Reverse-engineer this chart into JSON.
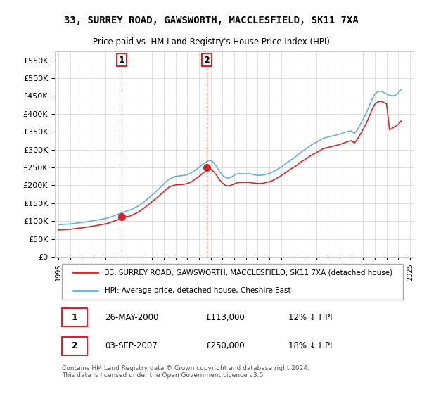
{
  "title": "33, SURREY ROAD, GAWSWORTH, MACCLESFIELD, SK11 7XA",
  "subtitle": "Price paid vs. HM Land Registry's House Price Index (HPI)",
  "legend_line1": "33, SURREY ROAD, GAWSWORTH, MACCLESFIELD, SK11 7XA (detached house)",
  "legend_line2": "HPI: Average price, detached house, Cheshire East",
  "marker1_label": "1",
  "marker1_date": "26-MAY-2000",
  "marker1_price": "£113,000",
  "marker1_hpi": "12% ↓ HPI",
  "marker2_label": "2",
  "marker2_date": "03-SEP-2007",
  "marker2_price": "£250,000",
  "marker2_hpi": "18% ↓ HPI",
  "footnote": "Contains HM Land Registry data © Crown copyright and database right 2024.\nThis data is licensed under the Open Government Licence v3.0.",
  "hpi_color": "#6baed6",
  "price_color": "#d62728",
  "marker_color": "#d62728",
  "grid_color": "#e0e0e0",
  "background_color": "#ffffff",
  "ylim": [
    0,
    575000
  ],
  "yticks": [
    0,
    50000,
    100000,
    150000,
    200000,
    250000,
    300000,
    350000,
    400000,
    450000,
    500000,
    550000
  ],
  "hpi_data": {
    "years": [
      1995.0,
      1995.25,
      1995.5,
      1995.75,
      1996.0,
      1996.25,
      1996.5,
      1996.75,
      1997.0,
      1997.25,
      1997.5,
      1997.75,
      1998.0,
      1998.25,
      1998.5,
      1998.75,
      1999.0,
      1999.25,
      1999.5,
      1999.75,
      2000.0,
      2000.25,
      2000.5,
      2000.75,
      2001.0,
      2001.25,
      2001.5,
      2001.75,
      2002.0,
      2002.25,
      2002.5,
      2002.75,
      2003.0,
      2003.25,
      2003.5,
      2003.75,
      2004.0,
      2004.25,
      2004.5,
      2004.75,
      2005.0,
      2005.25,
      2005.5,
      2005.75,
      2006.0,
      2006.25,
      2006.5,
      2006.75,
      2007.0,
      2007.25,
      2007.5,
      2007.75,
      2008.0,
      2008.25,
      2008.5,
      2008.75,
      2009.0,
      2009.25,
      2009.5,
      2009.75,
      2010.0,
      2010.25,
      2010.5,
      2010.75,
      2011.0,
      2011.25,
      2011.5,
      2011.75,
      2012.0,
      2012.25,
      2012.5,
      2012.75,
      2013.0,
      2013.25,
      2013.5,
      2013.75,
      2014.0,
      2014.25,
      2014.5,
      2014.75,
      2015.0,
      2015.25,
      2015.5,
      2015.75,
      2016.0,
      2016.25,
      2016.5,
      2016.75,
      2017.0,
      2017.25,
      2017.5,
      2017.75,
      2018.0,
      2018.25,
      2018.5,
      2018.75,
      2019.0,
      2019.25,
      2019.5,
      2019.75,
      2020.0,
      2020.25,
      2020.5,
      2020.75,
      2021.0,
      2021.25,
      2021.5,
      2021.75,
      2022.0,
      2022.25,
      2022.5,
      2022.75,
      2023.0,
      2023.25,
      2023.5,
      2023.75,
      2024.0,
      2024.25
    ],
    "values": [
      90000,
      90500,
      91000,
      91500,
      92000,
      93000,
      94000,
      95000,
      96000,
      97000,
      98500,
      100000,
      101000,
      102500,
      104000,
      105500,
      107000,
      109000,
      112000,
      115000,
      118000,
      121000,
      124000,
      127000,
      130000,
      133000,
      137000,
      141000,
      146000,
      152000,
      159000,
      166000,
      173000,
      180000,
      188000,
      196000,
      204000,
      212000,
      218000,
      222000,
      225000,
      226000,
      227000,
      228000,
      230000,
      233000,
      238000,
      244000,
      250000,
      257000,
      263000,
      268000,
      270000,
      263000,
      252000,
      238000,
      228000,
      222000,
      220000,
      223000,
      228000,
      232000,
      233000,
      232000,
      232000,
      233000,
      231000,
      229000,
      228000,
      228000,
      229000,
      231000,
      233000,
      237000,
      241000,
      246000,
      251000,
      257000,
      263000,
      269000,
      274000,
      280000,
      287000,
      294000,
      299000,
      305000,
      311000,
      316000,
      320000,
      325000,
      330000,
      333000,
      335000,
      337000,
      339000,
      341000,
      343000,
      346000,
      349000,
      351000,
      352000,
      345000,
      355000,
      370000,
      385000,
      400000,
      420000,
      440000,
      455000,
      462000,
      463000,
      460000,
      455000,
      452000,
      450000,
      452000,
      458000,
      468000
    ]
  },
  "price_data": {
    "years": [
      1995.0,
      1995.25,
      1995.5,
      1995.75,
      1996.0,
      1996.25,
      1996.5,
      1996.75,
      1997.0,
      1997.25,
      1997.5,
      1997.75,
      1998.0,
      1998.25,
      1998.5,
      1998.75,
      1999.0,
      1999.25,
      1999.5,
      1999.75,
      2000.0,
      2000.25,
      2000.5,
      2000.75,
      2001.0,
      2001.25,
      2001.5,
      2001.75,
      2002.0,
      2002.25,
      2002.5,
      2002.75,
      2003.0,
      2003.25,
      2003.5,
      2003.75,
      2004.0,
      2004.25,
      2004.5,
      2004.75,
      2005.0,
      2005.25,
      2005.5,
      2005.75,
      2006.0,
      2006.25,
      2006.5,
      2006.75,
      2007.0,
      2007.25,
      2007.5,
      2007.75,
      2008.0,
      2008.25,
      2008.5,
      2008.75,
      2009.0,
      2009.25,
      2009.5,
      2009.75,
      2010.0,
      2010.25,
      2010.5,
      2010.75,
      2011.0,
      2011.25,
      2011.5,
      2011.75,
      2012.0,
      2012.25,
      2012.5,
      2012.75,
      2013.0,
      2013.25,
      2013.5,
      2013.75,
      2014.0,
      2014.25,
      2014.5,
      2014.75,
      2015.0,
      2015.25,
      2015.5,
      2015.75,
      2016.0,
      2016.25,
      2016.5,
      2016.75,
      2017.0,
      2017.25,
      2017.5,
      2017.75,
      2018.0,
      2018.25,
      2018.5,
      2018.75,
      2019.0,
      2019.25,
      2019.5,
      2019.75,
      2020.0,
      2020.25,
      2020.5,
      2020.75,
      2021.0,
      2021.25,
      2021.5,
      2021.75,
      2022.0,
      2022.25,
      2022.5,
      2022.75,
      2023.0,
      2023.25,
      2023.5,
      2023.75,
      2024.0,
      2024.25
    ],
    "values": [
      75000,
      75500,
      76000,
      76500,
      77000,
      78000,
      79000,
      80000,
      81000,
      82000,
      83500,
      85000,
      86000,
      87500,
      89000,
      90500,
      92000,
      94000,
      97000,
      100000,
      103000,
      106000,
      109000,
      112000,
      113000,
      116000,
      120000,
      124000,
      129000,
      135000,
      141000,
      148000,
      155000,
      161000,
      168000,
      175000,
      182000,
      190000,
      196000,
      199000,
      201000,
      202000,
      202500,
      203000,
      205000,
      208000,
      213000,
      219000,
      225000,
      232000,
      238000,
      243000,
      245000,
      238000,
      228000,
      215000,
      206000,
      200000,
      198000,
      200000,
      204000,
      207000,
      208000,
      208000,
      208000,
      208000,
      207000,
      206000,
      205000,
      205000,
      206000,
      208000,
      210000,
      213000,
      217000,
      222000,
      227000,
      232000,
      238000,
      244000,
      249000,
      254000,
      260000,
      267000,
      271000,
      277000,
      282000,
      287000,
      291000,
      296000,
      301000,
      304000,
      306000,
      308000,
      310000,
      312000,
      314000,
      317000,
      320000,
      323000,
      325000,
      318000,
      328000,
      342000,
      357000,
      372000,
      391000,
      411000,
      427000,
      433000,
      435000,
      432000,
      427000,
      355000,
      360000,
      365000,
      370000,
      380000
    ]
  },
  "sale1_year": 2000.38,
  "sale1_price": 113000,
  "sale2_year": 2007.67,
  "sale2_price": 250000,
  "xtick_years": [
    1995,
    1996,
    1997,
    1998,
    1999,
    2000,
    2001,
    2002,
    2003,
    2004,
    2005,
    2006,
    2007,
    2008,
    2009,
    2010,
    2011,
    2012,
    2013,
    2014,
    2015,
    2016,
    2017,
    2018,
    2019,
    2020,
    2021,
    2022,
    2023,
    2024,
    2025
  ]
}
